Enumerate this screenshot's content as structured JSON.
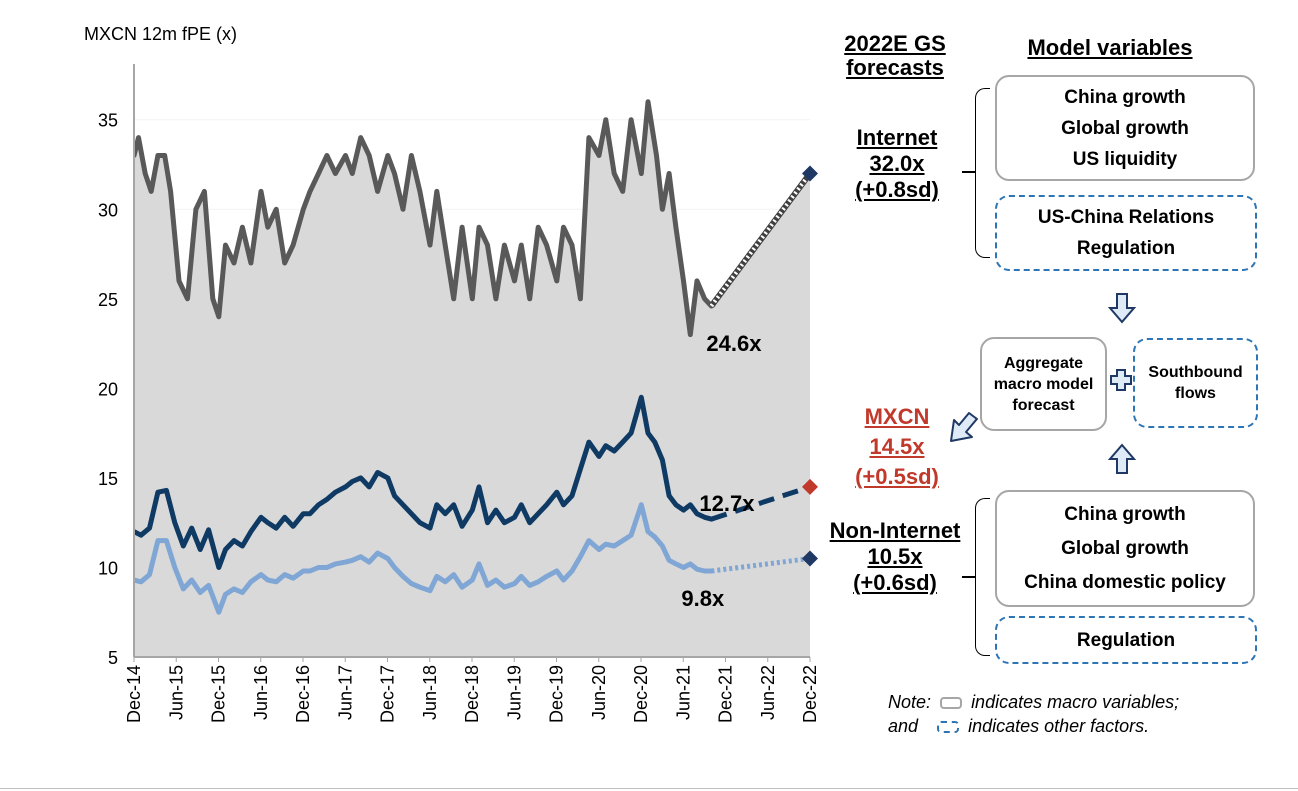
{
  "chart_data": {
    "type": "line",
    "title": "MXCN 12m fPE (x)",
    "xlabel": "",
    "ylabel": "MXCN 12m fPE (x)",
    "ylim": [
      5,
      38
    ],
    "yticks": [
      5,
      10,
      15,
      20,
      25,
      30,
      35
    ],
    "xlim": [
      2014.917,
      2022.917
    ],
    "xticks": [
      {
        "label": "Dec-14",
        "x": 2014.917
      },
      {
        "label": "Jun-15",
        "x": 2015.417
      },
      {
        "label": "Dec-15",
        "x": 2015.917
      },
      {
        "label": "Jun-16",
        "x": 2016.417
      },
      {
        "label": "Dec-16",
        "x": 2016.917
      },
      {
        "label": "Jun-17",
        "x": 2017.417
      },
      {
        "label": "Dec-17",
        "x": 2017.917
      },
      {
        "label": "Jun-18",
        "x": 2018.417
      },
      {
        "label": "Dec-18",
        "x": 2018.917
      },
      {
        "label": "Jun-19",
        "x": 2019.417
      },
      {
        "label": "Dec-19",
        "x": 2019.917
      },
      {
        "label": "Jun-20",
        "x": 2020.417
      },
      {
        "label": "Dec-20",
        "x": 2020.917
      },
      {
        "label": "Jun-21",
        "x": 2021.417
      },
      {
        "label": "Dec-21",
        "x": 2021.917
      },
      {
        "label": "Jun-22",
        "x": 2022.417
      },
      {
        "label": "Dec-22",
        "x": 2022.917
      }
    ],
    "series": [
      {
        "name": "Internet",
        "color": "#595959",
        "x": [
          2014.917,
          2014.97,
          2015.05,
          2015.12,
          2015.2,
          2015.28,
          2015.35,
          2015.45,
          2015.55,
          2015.65,
          2015.75,
          2015.85,
          2015.92,
          2016.0,
          2016.1,
          2016.2,
          2016.3,
          2016.42,
          2016.5,
          2016.6,
          2016.7,
          2016.8,
          2016.92,
          2017.0,
          2017.1,
          2017.2,
          2017.3,
          2017.42,
          2017.5,
          2017.6,
          2017.7,
          2017.8,
          2017.92,
          2018.0,
          2018.1,
          2018.2,
          2018.3,
          2018.42,
          2018.5,
          2018.6,
          2018.7,
          2018.8,
          2018.92,
          2019.0,
          2019.1,
          2019.2,
          2019.3,
          2019.42,
          2019.5,
          2019.6,
          2019.7,
          2019.8,
          2019.92,
          2020.0,
          2020.1,
          2020.2,
          2020.3,
          2020.42,
          2020.5,
          2020.6,
          2020.7,
          2020.8,
          2020.92,
          2021.0,
          2021.1,
          2021.17,
          2021.25,
          2021.33,
          2021.42,
          2021.5,
          2021.58,
          2021.67,
          2021.75
        ],
        "values": [
          33,
          34,
          32,
          31,
          33,
          33,
          31,
          26,
          25,
          30,
          31,
          25,
          24,
          28,
          27,
          29,
          27,
          31,
          29,
          30,
          27,
          28,
          30,
          31,
          32,
          33,
          32,
          33,
          32,
          34,
          33,
          31,
          33,
          32,
          30,
          33,
          31,
          28,
          31,
          28,
          25,
          29,
          25,
          29,
          28,
          25,
          28,
          26,
          28,
          25,
          29,
          28,
          26,
          29,
          28,
          25,
          34,
          33,
          35,
          32,
          31,
          35,
          32,
          36,
          33,
          30,
          32,
          29,
          26,
          23,
          26,
          25,
          24.6
        ]
      },
      {
        "name": "MXCN",
        "color": "#0f3a64",
        "x": [
          2014.917,
          2015.0,
          2015.1,
          2015.2,
          2015.3,
          2015.4,
          2015.5,
          2015.6,
          2015.7,
          2015.8,
          2015.92,
          2016.0,
          2016.1,
          2016.2,
          2016.3,
          2016.42,
          2016.5,
          2016.6,
          2016.7,
          2016.8,
          2016.92,
          2017.0,
          2017.1,
          2017.2,
          2017.3,
          2017.42,
          2017.5,
          2017.6,
          2017.7,
          2017.8,
          2017.92,
          2018.0,
          2018.1,
          2018.2,
          2018.3,
          2018.42,
          2018.5,
          2018.6,
          2018.7,
          2018.8,
          2018.92,
          2019.0,
          2019.1,
          2019.2,
          2019.3,
          2019.42,
          2019.5,
          2019.6,
          2019.7,
          2019.8,
          2019.92,
          2020.0,
          2020.1,
          2020.2,
          2020.3,
          2020.42,
          2020.5,
          2020.6,
          2020.7,
          2020.8,
          2020.92,
          2021.0,
          2021.08,
          2021.17,
          2021.25,
          2021.33,
          2021.42,
          2021.5,
          2021.58,
          2021.67,
          2021.75
        ],
        "values": [
          12,
          11.8,
          12.2,
          14.2,
          14.3,
          12.5,
          11.2,
          12.2,
          11,
          12.1,
          10,
          11,
          11.5,
          11.2,
          12,
          12.8,
          12.5,
          12.2,
          12.8,
          12.3,
          13,
          13,
          13.5,
          13.8,
          14.2,
          14.5,
          14.8,
          15,
          14.5,
          15.3,
          15,
          14,
          13.5,
          13,
          12.5,
          12.2,
          13.5,
          13,
          13.5,
          12.3,
          13.2,
          14.5,
          12.5,
          13.2,
          12.5,
          12.8,
          13.5,
          12.5,
          13,
          13.5,
          14.2,
          13.5,
          14,
          15.5,
          17,
          16.2,
          16.8,
          16.5,
          17,
          17.5,
          19.5,
          17.5,
          17,
          16,
          14,
          13.5,
          13.2,
          13.5,
          13,
          12.8,
          12.7
        ]
      },
      {
        "name": "Non-Internet",
        "color": "#7fa6d4",
        "x": [
          2014.917,
          2015.0,
          2015.1,
          2015.2,
          2015.3,
          2015.4,
          2015.5,
          2015.6,
          2015.7,
          2015.8,
          2015.92,
          2016.0,
          2016.1,
          2016.2,
          2016.3,
          2016.42,
          2016.5,
          2016.6,
          2016.7,
          2016.8,
          2016.92,
          2017.0,
          2017.1,
          2017.2,
          2017.3,
          2017.42,
          2017.5,
          2017.6,
          2017.7,
          2017.8,
          2017.92,
          2018.0,
          2018.1,
          2018.2,
          2018.3,
          2018.42,
          2018.5,
          2018.6,
          2018.7,
          2018.8,
          2018.92,
          2019.0,
          2019.1,
          2019.2,
          2019.3,
          2019.42,
          2019.5,
          2019.6,
          2019.7,
          2019.8,
          2019.92,
          2020.0,
          2020.1,
          2020.2,
          2020.3,
          2020.42,
          2020.5,
          2020.6,
          2020.7,
          2020.8,
          2020.92,
          2021.0,
          2021.08,
          2021.17,
          2021.25,
          2021.33,
          2021.42,
          2021.5,
          2021.58,
          2021.67,
          2021.75
        ],
        "values": [
          9.3,
          9.2,
          9.6,
          11.5,
          11.5,
          10,
          8.8,
          9.3,
          8.6,
          9,
          7.5,
          8.5,
          8.8,
          8.6,
          9.2,
          9.6,
          9.3,
          9.2,
          9.6,
          9.4,
          9.8,
          9.8,
          10,
          10,
          10.2,
          10.3,
          10.4,
          10.6,
          10.3,
          10.8,
          10.5,
          10,
          9.5,
          9.1,
          8.9,
          8.7,
          9.5,
          9.2,
          9.6,
          8.9,
          9.3,
          10.2,
          9,
          9.3,
          8.9,
          9.1,
          9.5,
          9,
          9.2,
          9.5,
          9.8,
          9.3,
          9.8,
          10.6,
          11.5,
          11,
          11.3,
          11.2,
          11.5,
          11.8,
          13.5,
          12,
          11.7,
          11.2,
          10.4,
          10.2,
          10,
          10.2,
          9.9,
          9.8,
          9.8
        ]
      }
    ],
    "projections": [
      {
        "name": "Internet",
        "from": [
          2021.75,
          24.6
        ],
        "to": [
          2022.917,
          32.0
        ],
        "style": "white-dotted",
        "marker_color": "#1f3864"
      },
      {
        "name": "MXCN",
        "from": [
          2021.75,
          12.7
        ],
        "to": [
          2022.917,
          14.5
        ],
        "style": "dashed",
        "marker_color": "#c0392b"
      },
      {
        "name": "Non-Internet",
        "from": [
          2021.75,
          9.8
        ],
        "to": [
          2022.917,
          10.5
        ],
        "style": "dotted",
        "marker_color": "#1f3864"
      }
    ],
    "data_labels": [
      {
        "series": "Internet",
        "text": "24.6x",
        "x": 2021.75,
        "y": 24.6
      },
      {
        "series": "MXCN",
        "text": "12.7x",
        "x": 2021.75,
        "y": 12.7
      },
      {
        "series": "Non-Internet",
        "text": "9.8x",
        "x": 2021.75,
        "y": 9.8
      }
    ],
    "shaded_area": {
      "between": [
        "Internet",
        "axis-min"
      ],
      "color": "#d9d9d9"
    }
  },
  "forecasts": {
    "header_line1": "2022E GS",
    "header_line2": "forecasts",
    "internet": {
      "name": "Internet",
      "value": "32.0x",
      "sd": "(+0.8sd)"
    },
    "mxcn": {
      "name": "MXCN",
      "value": "14.5x",
      "sd": "(+0.5sd)"
    },
    "non_internet": {
      "name": "Non-Internet",
      "value": "10.5x",
      "sd": "(+0.6sd)"
    }
  },
  "model": {
    "header": "Model variables",
    "internet_macro": [
      "China growth",
      "Global growth",
      "US liquidity"
    ],
    "internet_other": [
      "US-China Relations",
      "Regulation"
    ],
    "aggregate": [
      "Aggregate",
      "macro model",
      "forecast"
    ],
    "southbound": [
      "Southbound",
      "flows"
    ],
    "noninternet_macro": [
      "China growth",
      "Global growth",
      "China domestic policy"
    ],
    "noninternet_other": [
      "Regulation"
    ]
  },
  "note": {
    "line1_prefix": "Note:",
    "line1_suffix": "indicates macro variables;",
    "line2_prefix": "and",
    "line2_suffix": "indicates other factors."
  }
}
